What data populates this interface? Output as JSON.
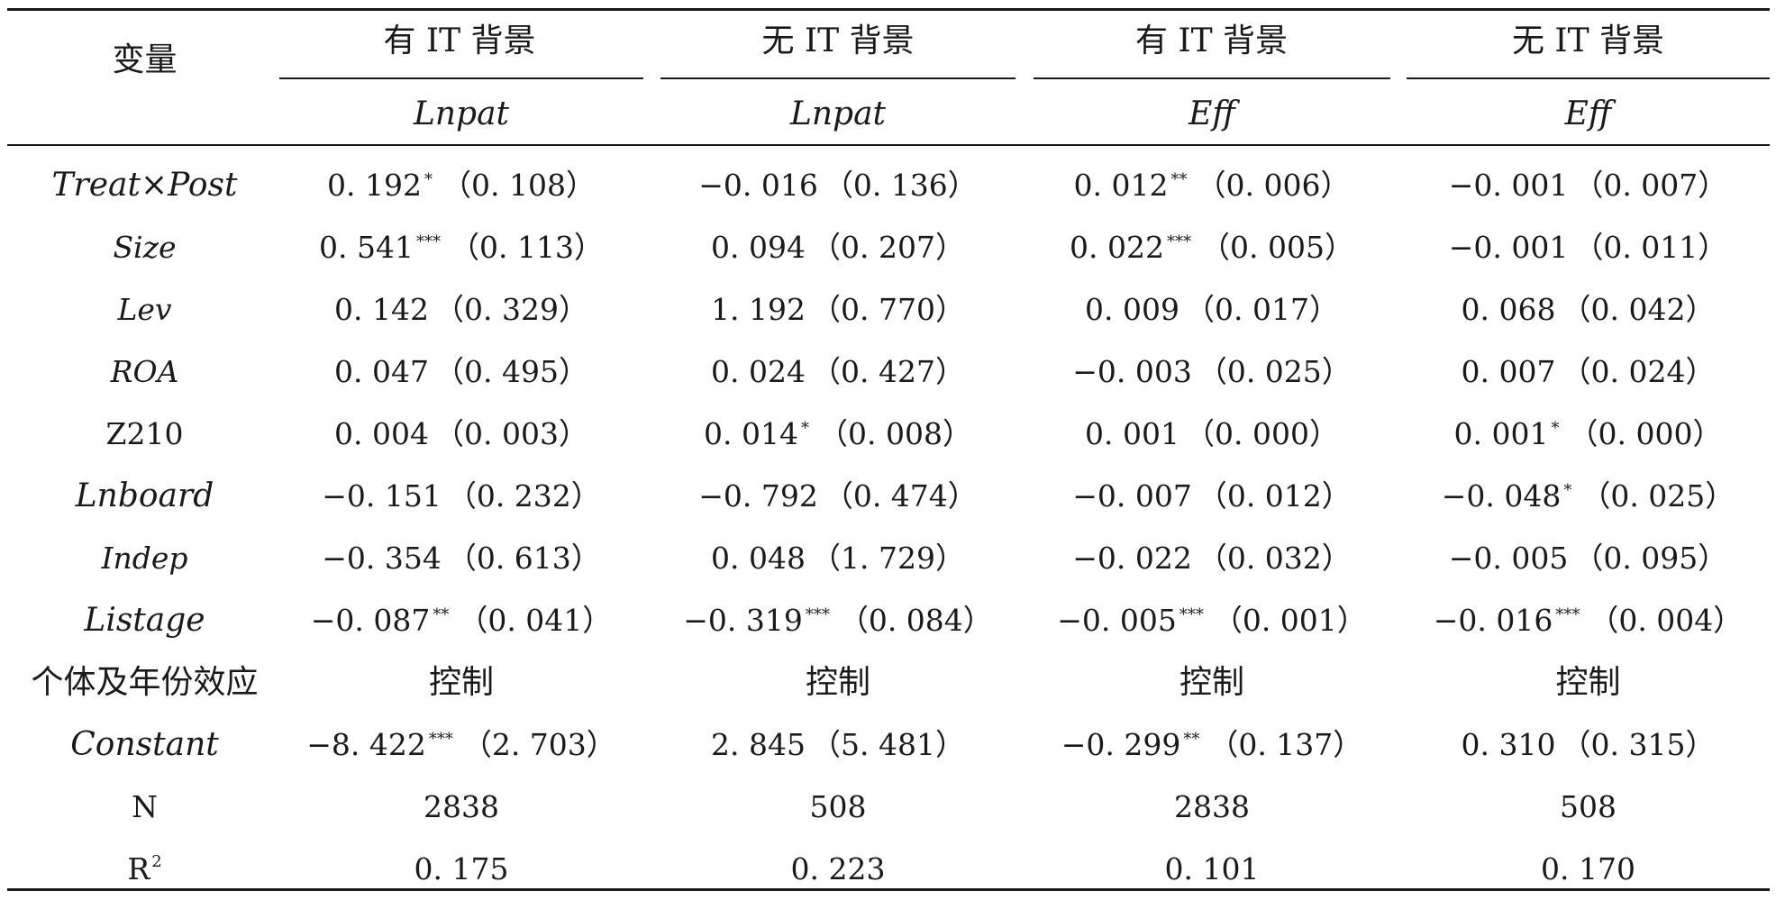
{
  "table": {
    "corner_label": "变量",
    "group_headers": [
      "有 IT 背景",
      "无 IT 背景",
      "有 IT 背景",
      "无 IT 背景"
    ],
    "dependent_vars": [
      "Lnpat",
      "Lnpat",
      "Eff",
      "Eff"
    ],
    "rows": [
      {
        "label": "Treat×Post",
        "italic": true,
        "cells": [
          {
            "coef": "0. 192",
            "stars": "*",
            "se": "（0. 108）"
          },
          {
            "coef": "−0. 016",
            "stars": "",
            "se": "（0. 136）"
          },
          {
            "coef": "0. 012",
            "stars": "**",
            "se": "（0. 006）"
          },
          {
            "coef": "−0. 001",
            "stars": "",
            "se": "（0. 007）"
          }
        ]
      },
      {
        "label": "Size",
        "italic": true,
        "cells": [
          {
            "coef": "0. 541",
            "stars": "***",
            "se": "（0. 113）"
          },
          {
            "coef": "0. 094",
            "stars": "",
            "se": "（0. 207）"
          },
          {
            "coef": "0. 022",
            "stars": "***",
            "se": "（0. 005）"
          },
          {
            "coef": "−0. 001",
            "stars": "",
            "se": "（0. 011）"
          }
        ]
      },
      {
        "label": "Lev",
        "italic": true,
        "cells": [
          {
            "coef": "0. 142",
            "stars": "",
            "se": "（0. 329）"
          },
          {
            "coef": "1. 192",
            "stars": "",
            "se": "（0. 770）"
          },
          {
            "coef": "0. 009",
            "stars": "",
            "se": "（0. 017）"
          },
          {
            "coef": "0. 068",
            "stars": "",
            "se": "（0. 042）"
          }
        ]
      },
      {
        "label": "ROA",
        "italic": true,
        "cells": [
          {
            "coef": "0. 047",
            "stars": "",
            "se": "（0. 495）"
          },
          {
            "coef": "0. 024",
            "stars": "",
            "se": "（0. 427）"
          },
          {
            "coef": "−0. 003",
            "stars": "",
            "se": "（0. 025）"
          },
          {
            "coef": "0. 007",
            "stars": "",
            "se": "（0. 024）"
          }
        ]
      },
      {
        "label": "Z210",
        "italic": false,
        "cells": [
          {
            "coef": "0. 004",
            "stars": "",
            "se": "（0. 003）"
          },
          {
            "coef": "0. 014",
            "stars": "*",
            "se": "（0. 008）"
          },
          {
            "coef": "0. 001",
            "stars": "",
            "se": "（0. 000）"
          },
          {
            "coef": "0. 001",
            "stars": "*",
            "se": "（0. 000）"
          }
        ]
      },
      {
        "label": "Lnboard",
        "italic": true,
        "cells": [
          {
            "coef": "−0. 151",
            "stars": "",
            "se": "（0. 232）"
          },
          {
            "coef": "−0. 792",
            "stars": "",
            "se": "（0. 474）"
          },
          {
            "coef": "−0. 007",
            "stars": "",
            "se": "（0. 012）"
          },
          {
            "coef": "−0. 048",
            "stars": "*",
            "se": "（0. 025）"
          }
        ]
      },
      {
        "label": "Indep",
        "italic": true,
        "cells": [
          {
            "coef": "−0. 354",
            "stars": "",
            "se": "（0. 613）"
          },
          {
            "coef": "0. 048",
            "stars": "",
            "se": "（1. 729）"
          },
          {
            "coef": "−0. 022",
            "stars": "",
            "se": "（0. 032）"
          },
          {
            "coef": "−0. 005",
            "stars": "",
            "se": "（0. 095）"
          }
        ]
      },
      {
        "label": "Listage",
        "italic": true,
        "cells": [
          {
            "coef": "−0. 087",
            "stars": "**",
            "se": "（0. 041）"
          },
          {
            "coef": "−0. 319",
            "stars": "***",
            "se": "（0. 084）"
          },
          {
            "coef": "−0. 005",
            "stars": "***",
            "se": "（0. 001）"
          },
          {
            "coef": "−0. 016",
            "stars": "***",
            "se": "（0. 004）"
          }
        ]
      },
      {
        "label": "个体及年份效应",
        "italic": false,
        "cells": [
          {
            "coef": "控制",
            "stars": "",
            "se": ""
          },
          {
            "coef": "控制",
            "stars": "",
            "se": ""
          },
          {
            "coef": "控制",
            "stars": "",
            "se": ""
          },
          {
            "coef": "控制",
            "stars": "",
            "se": ""
          }
        ]
      },
      {
        "label": "Constant",
        "italic": true,
        "cells": [
          {
            "coef": "−8. 422",
            "stars": "***",
            "se": "（2. 703）"
          },
          {
            "coef": "2. 845",
            "stars": "",
            "se": "（5. 481）"
          },
          {
            "coef": "−0. 299",
            "stars": "**",
            "se": "（0. 137）"
          },
          {
            "coef": "0. 310",
            "stars": "",
            "se": "（0. 315）"
          }
        ]
      },
      {
        "label": "N",
        "italic": false,
        "cells": [
          {
            "coef": "2838",
            "stars": "",
            "se": ""
          },
          {
            "coef": "508",
            "stars": "",
            "se": ""
          },
          {
            "coef": "2838",
            "stars": "",
            "se": ""
          },
          {
            "coef": "508",
            "stars": "",
            "se": ""
          }
        ]
      }
    ],
    "r2": {
      "label": "R",
      "label_sup": "2",
      "values": [
        "0. 175",
        "0. 223",
        "0. 101",
        "0. 170"
      ]
    }
  }
}
